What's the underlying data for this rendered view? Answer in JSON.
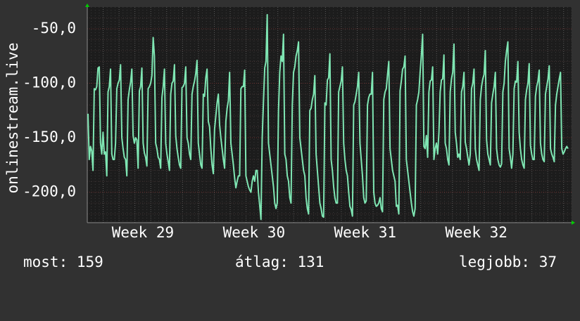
{
  "chart_data": {
    "type": "line",
    "ylabel": "onlinestream.live",
    "y_inverted": true,
    "ylim": [
      -228,
      -30
    ],
    "y_ticks": [
      "-50,0",
      "-100,0",
      "-150,0",
      "-200,0"
    ],
    "y_tick_values": [
      -50,
      -100,
      -150,
      -200
    ],
    "x_ticks": [
      "Week 29",
      "Week 30",
      "Week 31",
      "Week 32"
    ],
    "x_tick_day_positions": [
      3.5,
      10.5,
      17.5,
      24.5
    ],
    "x_range_days": [
      0,
      30.5
    ],
    "grid": true,
    "line_color": "#7fe6b3",
    "series": [
      {
        "values": [
          -128,
          -170,
          -158,
          -162,
          -180,
          -105,
          -106,
          -103,
          -86,
          -85,
          -155,
          -165,
          -145,
          -165,
          -163,
          -185,
          -108,
          -103,
          -87,
          -165,
          -170,
          -170,
          -155,
          -105,
          -100,
          -97,
          -83,
          -150,
          -160,
          -168,
          -170,
          -185,
          -115,
          -106,
          -99,
          -87,
          -148,
          -155,
          -150,
          -152,
          -178,
          -107,
          -103,
          -86,
          -155,
          -164,
          -168,
          -176,
          -105,
          -103,
          -100,
          -93,
          -58,
          -75,
          -155,
          -160,
          -168,
          -170,
          -178,
          -113,
          -103,
          -87,
          -155,
          -165,
          -172,
          -180,
          -110,
          -100,
          -98,
          -83,
          -148,
          -160,
          -168,
          -175,
          -178,
          -104,
          -103,
          -100,
          -85,
          -150,
          -155,
          -165,
          -170,
          -110,
          -103,
          -98,
          -91,
          -79,
          -155,
          -165,
          -175,
          -178,
          -110,
          -112,
          -95,
          -87,
          -135,
          -140,
          -160,
          -175,
          -183,
          -142,
          -130,
          -118,
          -110,
          -138,
          -150,
          -160,
          -170,
          -178,
          -135,
          -123,
          -116,
          -90,
          -155,
          -165,
          -175,
          -187,
          -196,
          -190,
          -185,
          -185,
          -105,
          -103,
          -103,
          -88,
          -185,
          -190,
          -195,
          -198,
          -200,
          -190,
          -185,
          -190,
          -180,
          -180,
          -200,
          -212,
          -225,
          -150,
          -117,
          -86,
          -80,
          -37,
          -155,
          -165,
          -175,
          -185,
          -195,
          -210,
          -215,
          -210,
          -125,
          -90,
          -75,
          -80,
          -55,
          -165,
          -170,
          -185,
          -190,
          -205,
          -210,
          -120,
          -90,
          -85,
          -75,
          -70,
          -62,
          -150,
          -160,
          -170,
          -180,
          -185,
          -205,
          -215,
          -220,
          -125,
          -123,
          -115,
          -110,
          -93,
          -165,
          -180,
          -195,
          -210,
          -215,
          -222,
          -223,
          -118,
          -120,
          -97,
          -95,
          -73,
          -170,
          -180,
          -195,
          -205,
          -210,
          -210,
          -108,
          -103,
          -98,
          -85,
          -155,
          -170,
          -180,
          -185,
          -200,
          -213,
          -216,
          -222,
          -120,
          -117,
          -110,
          -103,
          -90,
          -155,
          -170,
          -185,
          -205,
          -210,
          -208,
          -120,
          -113,
          -110,
          -110,
          -90,
          -200,
          -210,
          -213,
          -212,
          -210,
          -205,
          -215,
          -218,
          -115,
          -108,
          -105,
          -92,
          -80,
          -160,
          -170,
          -180,
          -185,
          -190,
          -213,
          -212,
          -220,
          -107,
          -98,
          -87,
          -85,
          -75,
          -170,
          -180,
          -190,
          -200,
          -210,
          -218,
          -222,
          -215,
          -120,
          -115,
          -108,
          -90,
          -74,
          -55,
          -158,
          -160,
          -148,
          -168,
          -108,
          -98,
          -97,
          -85,
          -170,
          -160,
          -155,
          -165,
          -145,
          -108,
          -97,
          -96,
          -74,
          -155,
          -160,
          -170,
          -175,
          -108,
          -96,
          -90,
          -64,
          -145,
          -155,
          -168,
          -165,
          -170,
          -108,
          -103,
          -90,
          -154,
          -160,
          -168,
          -175,
          -165,
          -105,
          -100,
          -87,
          -160,
          -170,
          -175,
          -180,
          -115,
          -103,
          -96,
          -92,
          -70,
          -152,
          -165,
          -170,
          -175,
          -118,
          -110,
          -103,
          -90,
          -160,
          -170,
          -175,
          -177,
          -174,
          -108,
          -100,
          -80,
          -70,
          -62,
          -160,
          -168,
          -178,
          -165,
          -105,
          -98,
          -99,
          -80,
          -145,
          -160,
          -170,
          -175,
          -178,
          -115,
          -106,
          -100,
          -82,
          -157,
          -165,
          -170,
          -170,
          -112,
          -103,
          -98,
          -88,
          -155,
          -165,
          -170,
          -172,
          -110,
          -103,
          -96,
          -84,
          -160,
          -165,
          -168,
          -172,
          -120,
          -110,
          -103,
          -96,
          -90,
          -160,
          -165,
          -163,
          -160,
          -158,
          -160
        ]
      }
    ]
  },
  "stats": {
    "now": "most: 159",
    "avg": "átlag: 131",
    "best": "legjobb: 37"
  }
}
